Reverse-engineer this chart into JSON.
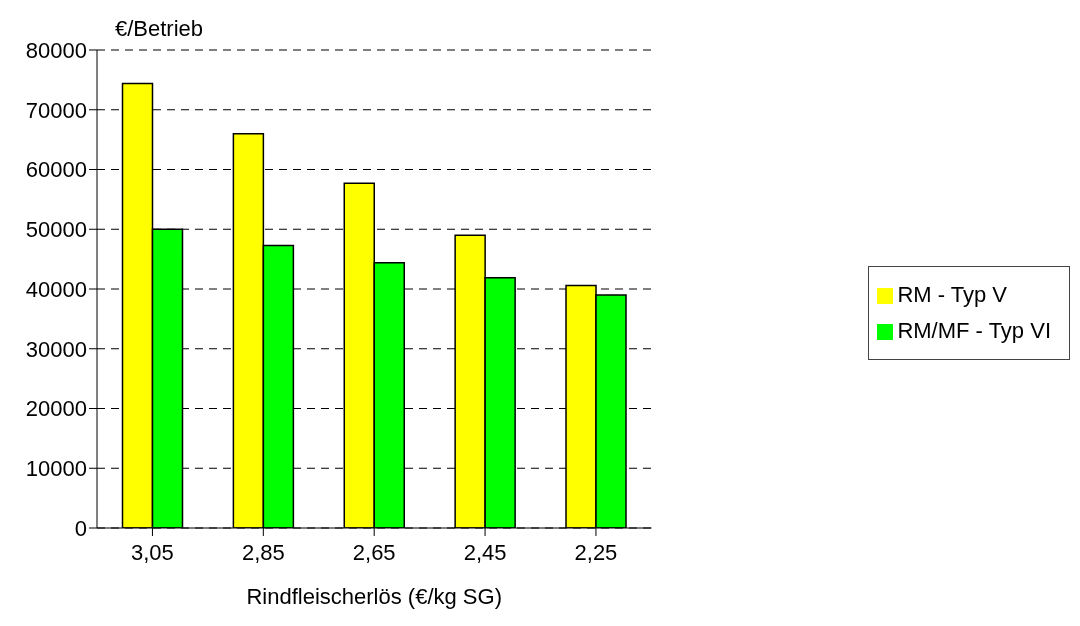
{
  "chart_data": {
    "type": "bar",
    "ylabel": "€/Betrieb",
    "xlabel": "Rindfleischerlös (€/kg SG)",
    "categories": [
      "3,05",
      "2,85",
      "2,65",
      "2,45",
      "2,25"
    ],
    "series": [
      {
        "name": "RM - Typ V",
        "color": "#ffff00",
        "values": [
          74400,
          66000,
          57700,
          49000,
          40600
        ]
      },
      {
        "name": "RM/MF - Typ VI",
        "color": "#00ff00",
        "values": [
          50000,
          47300,
          44400,
          41900,
          39000
        ]
      }
    ],
    "ylim": [
      0,
      80000
    ],
    "yticks": [
      0,
      10000,
      20000,
      30000,
      40000,
      50000,
      60000,
      70000,
      80000
    ],
    "grid": "y",
    "legend": "right"
  }
}
